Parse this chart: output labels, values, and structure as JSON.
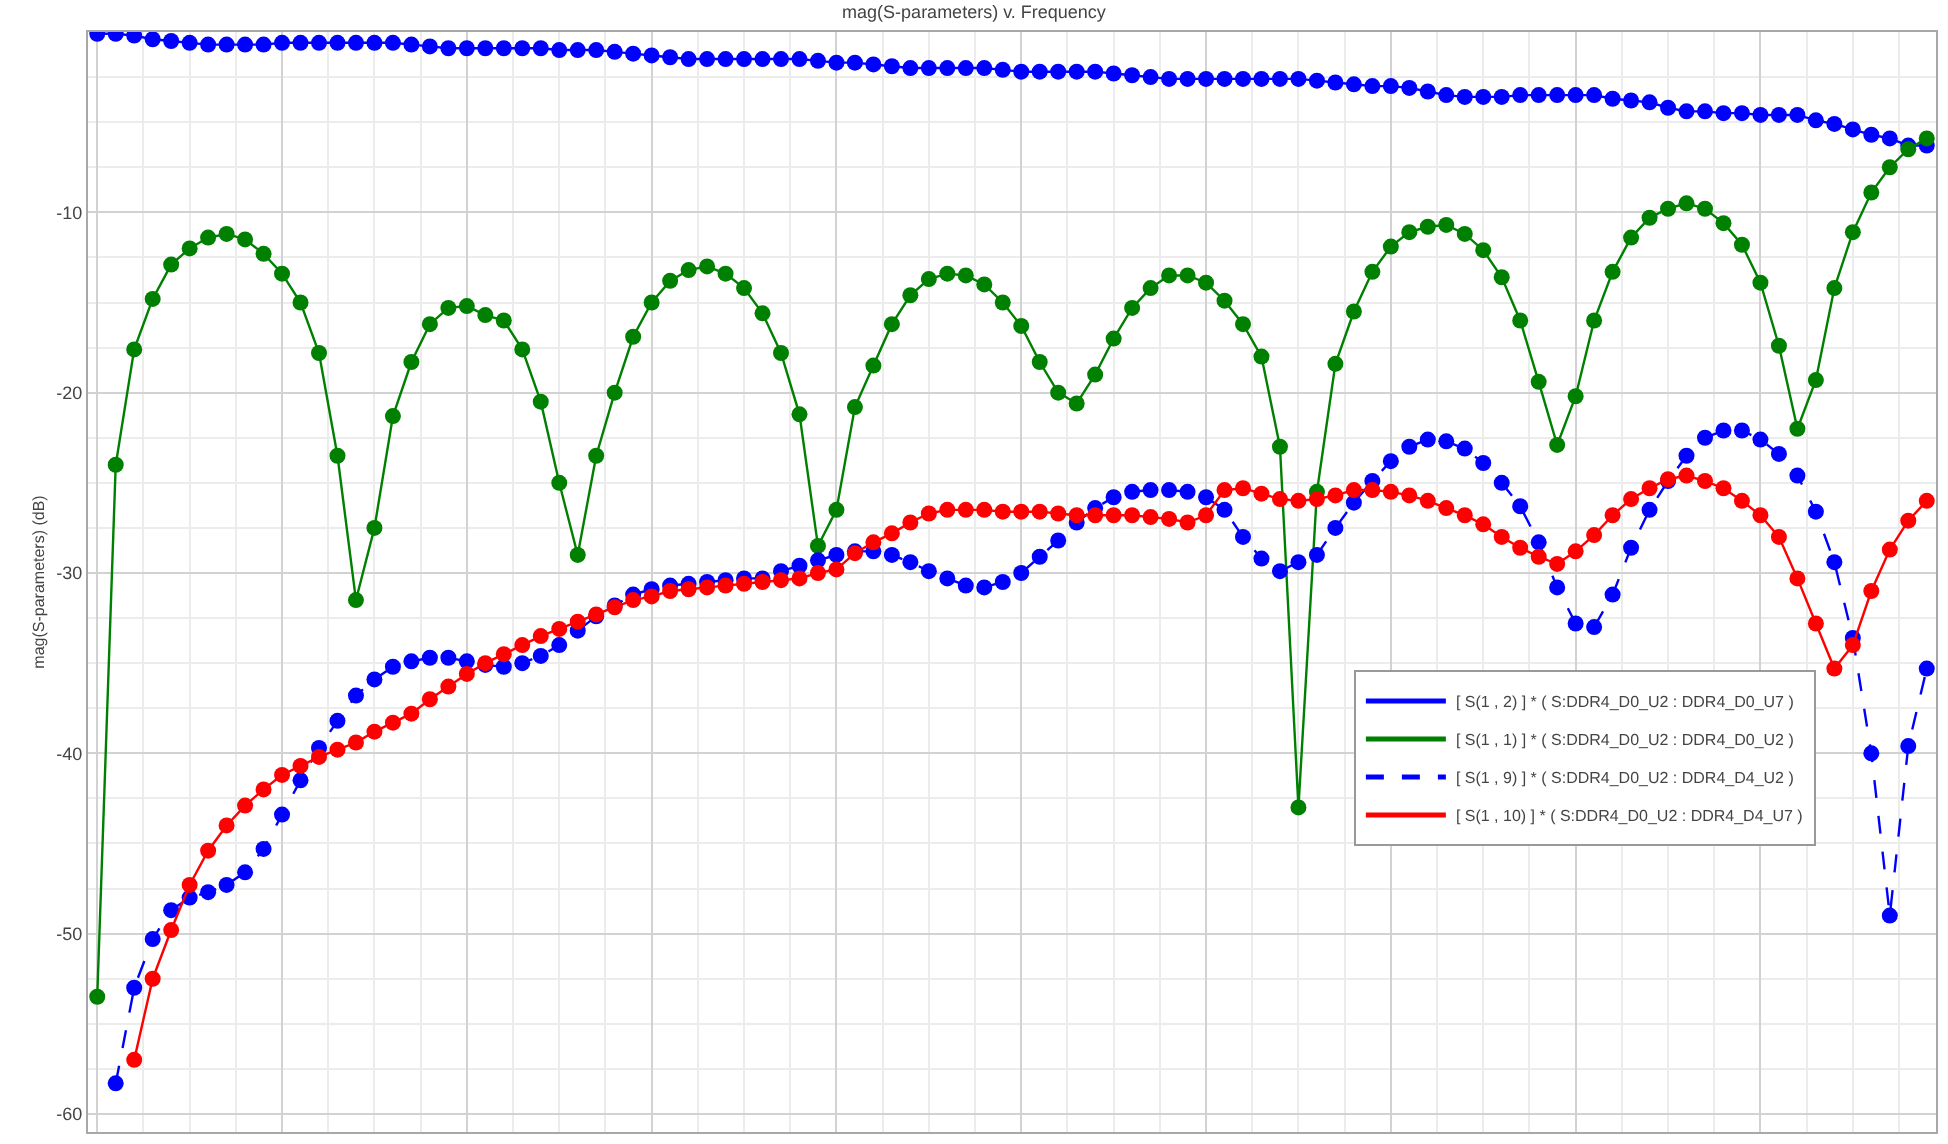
{
  "chart_data": {
    "type": "line",
    "title": "mag(S-parameters) v. Frequency",
    "ylabel": "mag(S-parameters) (dB)",
    "categories": [
      null,
      null,
      null,
      null,
      null,
      null,
      null,
      null,
      null,
      null,
      null,
      null,
      null,
      null,
      null,
      null,
      null,
      null,
      null,
      null,
      null,
      null,
      null,
      null,
      null,
      null,
      null,
      null,
      null,
      null,
      null,
      null,
      null,
      null,
      null,
      null,
      null,
      null,
      null,
      null,
      null,
      null,
      null,
      null,
      null,
      null,
      null,
      null,
      null,
      null,
      null,
      null,
      null,
      null,
      null,
      null,
      null,
      null,
      null,
      null,
      null,
      null,
      null,
      null,
      null,
      null,
      null,
      null,
      null,
      null,
      null,
      null,
      null,
      null,
      null,
      null,
      null,
      null,
      null,
      null,
      null,
      null,
      null,
      null,
      null,
      null,
      null,
      null,
      null,
      null,
      null,
      null,
      null,
      null,
      null,
      null,
      null,
      null,
      null,
      null
    ],
    "ylim": [
      -61,
      0
    ],
    "yticks": [
      -60,
      -50,
      -40,
      -30,
      -20,
      -10
    ],
    "grid": true,
    "legend": "right",
    "marker": "circle",
    "series": [
      {
        "name": "[ S(1 , 2) ] * ( S:DDR4_D0_U2 : DDR4_D0_U7 )",
        "color": "#0000ff",
        "line_style": "solid",
        "values": [
          -0.1,
          -0.1,
          -0.2,
          -0.4,
          -0.5,
          -0.6,
          -0.7,
          -0.7,
          -0.7,
          -0.7,
          -0.6,
          -0.6,
          -0.6,
          -0.6,
          -0.6,
          -0.6,
          -0.6,
          -0.7,
          -0.8,
          -0.9,
          -0.9,
          -0.9,
          -0.9,
          -0.9,
          -0.9,
          -1.0,
          -1.0,
          -1.0,
          -1.1,
          -1.2,
          -1.3,
          -1.4,
          -1.5,
          -1.5,
          -1.5,
          -1.5,
          -1.5,
          -1.5,
          -1.5,
          -1.6,
          -1.7,
          -1.7,
          -1.8,
          -1.9,
          -2.0,
          -2.0,
          -2.0,
          -2.0,
          -2.0,
          -2.1,
          -2.2,
          -2.2,
          -2.2,
          -2.2,
          -2.2,
          -2.3,
          -2.4,
          -2.5,
          -2.6,
          -2.6,
          -2.6,
          -2.6,
          -2.6,
          -2.6,
          -2.6,
          -2.6,
          -2.7,
          -2.8,
          -2.9,
          -3.0,
          -3.0,
          -3.1,
          -3.3,
          -3.5,
          -3.6,
          -3.6,
          -3.6,
          -3.5,
          -3.5,
          -3.5,
          -3.5,
          -3.5,
          -3.7,
          -3.8,
          -3.9,
          -4.2,
          -4.4,
          -4.4,
          -4.5,
          -4.5,
          -4.6,
          -4.6,
          -4.6,
          -4.9,
          -5.1,
          -5.4,
          -5.7,
          -5.9,
          -6.3,
          -6.3
        ]
      },
      {
        "name": "[ S(1 , 1) ] * ( S:DDR4_D0_U2 : DDR4_D0_U2 )",
        "color": "#008000",
        "line_style": "solid",
        "values": [
          -53.5,
          -24.0,
          -17.6,
          -14.8,
          -12.9,
          -12.0,
          -11.4,
          -11.2,
          -11.5,
          -12.3,
          -13.4,
          -15.0,
          -17.8,
          -23.5,
          -31.5,
          -27.5,
          -21.3,
          -18.3,
          -16.2,
          -15.3,
          -15.2,
          -15.7,
          -16.0,
          -17.6,
          -20.5,
          -25.0,
          -29.0,
          -23.5,
          -20.0,
          -16.9,
          -15.0,
          -13.8,
          -13.2,
          -13.0,
          -13.4,
          -14.2,
          -15.6,
          -17.8,
          -21.2,
          -28.5,
          -26.5,
          -20.8,
          -18.5,
          -16.2,
          -14.6,
          -13.7,
          -13.4,
          -13.5,
          -14.0,
          -15.0,
          -16.3,
          -18.3,
          -20.0,
          -20.6,
          -19.0,
          -17.0,
          -15.3,
          -14.2,
          -13.5,
          -13.5,
          -13.9,
          -14.9,
          -16.2,
          -18.0,
          -23.0,
          -43.0,
          -25.5,
          -18.4,
          -15.5,
          -13.3,
          -11.9,
          -11.1,
          -10.8,
          -10.7,
          -11.2,
          -12.1,
          -13.6,
          -16.0,
          -19.4,
          -22.9,
          -20.2,
          -16.0,
          -13.3,
          -11.4,
          -10.3,
          -9.8,
          -9.5,
          -9.8,
          -10.6,
          -11.8,
          -13.9,
          -17.4,
          -22.0,
          -19.3,
          -14.2,
          -11.1,
          -8.9,
          -7.5,
          -6.5,
          -5.9
        ]
      },
      {
        "name": "[ S(1 , 9) ] * ( S:DDR4_D0_U2 : DDR4_D4_U2 )",
        "color": "#0000ff",
        "line_style": "dashed",
        "values": [
          null,
          -58.3,
          -53.0,
          -50.3,
          -48.7,
          -48.0,
          -47.7,
          -47.3,
          -46.6,
          -45.3,
          -43.4,
          -41.5,
          -39.7,
          -38.2,
          -36.8,
          -35.9,
          -35.2,
          -34.9,
          -34.7,
          -34.7,
          -34.9,
          -35.1,
          -35.2,
          -35.0,
          -34.6,
          -34.0,
          -33.2,
          -32.4,
          -31.8,
          -31.2,
          -30.9,
          -30.7,
          -30.6,
          -30.5,
          -30.4,
          -30.3,
          -30.3,
          -29.9,
          -29.6,
          -29.3,
          -29.0,
          -28.8,
          -28.8,
          -29.0,
          -29.4,
          -29.9,
          -30.3,
          -30.7,
          -30.8,
          -30.5,
          -30.0,
          -29.1,
          -28.2,
          -27.2,
          -26.4,
          -25.8,
          -25.5,
          -25.4,
          -25.4,
          -25.5,
          -25.8,
          -26.5,
          -28.0,
          -29.2,
          -29.9,
          -29.4,
          -29.0,
          -27.5,
          -26.1,
          -24.9,
          -23.8,
          -23.0,
          -22.6,
          -22.7,
          -23.1,
          -23.9,
          -25.0,
          -26.3,
          -28.3,
          -30.8,
          -32.8,
          -33.0,
          -31.2,
          -28.6,
          -26.5,
          -24.9,
          -23.5,
          -22.5,
          -22.1,
          -22.1,
          -22.6,
          -23.4,
          -24.6,
          -26.6,
          -29.4,
          -33.6,
          -40.0,
          -49.0,
          -39.6,
          -35.3
        ]
      },
      {
        "name": "[ S(1 , 10) ] * ( S:DDR4_D0_U2 : DDR4_D4_U7 )",
        "color": "#ff0000",
        "line_style": "solid",
        "values": [
          null,
          null,
          -57.0,
          -52.5,
          -49.8,
          -47.3,
          -45.4,
          -44.0,
          -42.9,
          -42.0,
          -41.2,
          -40.7,
          -40.2,
          -39.8,
          -39.4,
          -38.8,
          -38.3,
          -37.8,
          -37.0,
          -36.3,
          -35.6,
          -35.0,
          -34.5,
          -34.0,
          -33.5,
          -33.1,
          -32.7,
          -32.3,
          -31.9,
          -31.5,
          -31.3,
          -31.0,
          -30.9,
          -30.8,
          -30.7,
          -30.6,
          -30.5,
          -30.4,
          -30.3,
          -30.0,
          -29.8,
          -28.9,
          -28.3,
          -27.8,
          -27.2,
          -26.7,
          -26.5,
          -26.5,
          -26.5,
          -26.6,
          -26.6,
          -26.6,
          -26.7,
          -26.8,
          -26.8,
          -26.8,
          -26.8,
          -26.9,
          -27.0,
          -27.2,
          -26.8,
          -25.4,
          -25.3,
          -25.6,
          -25.9,
          -26.0,
          -25.9,
          -25.7,
          -25.4,
          -25.4,
          -25.5,
          -25.7,
          -26.0,
          -26.4,
          -26.8,
          -27.3,
          -28.0,
          -28.6,
          -29.1,
          -29.5,
          -28.8,
          -27.9,
          -26.8,
          -25.9,
          -25.3,
          -24.8,
          -24.6,
          -24.9,
          -25.3,
          -26.0,
          -26.8,
          -28.0,
          -30.3,
          -32.8,
          -35.3,
          -34.0,
          -31.0,
          -28.7,
          -27.1,
          -26.0
        ]
      }
    ]
  }
}
